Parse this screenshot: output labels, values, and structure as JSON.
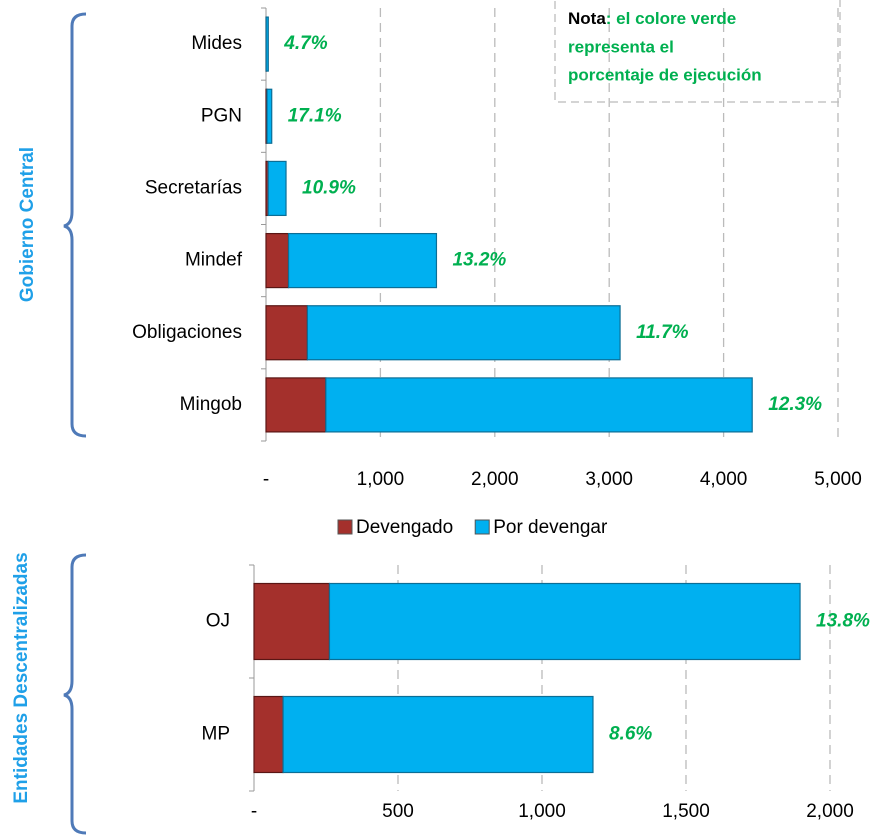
{
  "chart_data": [
    {
      "type": "bar",
      "orientation": "horizontal",
      "stacked": true,
      "group_label": "Gobierno Central",
      "categories": [
        "Mides",
        "PGN",
        "Secretarías",
        "Mindef",
        "Obligaciones",
        "Mingob"
      ],
      "series": [
        {
          "name": "Devengado",
          "color": "#a4302c",
          "values": [
            1,
            9,
            19,
            197,
            362,
            523
          ]
        },
        {
          "name": "Por devengar",
          "color": "#00b0f0",
          "values": [
            19,
            41,
            156,
            1293,
            2733,
            3727
          ]
        }
      ],
      "annotations": [
        "4.7%",
        "17.1%",
        "10.9%",
        "13.2%",
        "11.7%",
        "12.3%"
      ],
      "xlim": [
        0,
        5000
      ],
      "xticks": [
        {
          "value": 0,
          "label": "-"
        },
        {
          "value": 1000,
          "label": "1,000"
        },
        {
          "value": 2000,
          "label": "2,000"
        },
        {
          "value": 3000,
          "label": "3,000"
        },
        {
          "value": 4000,
          "label": "4,000"
        },
        {
          "value": 5000,
          "label": "5,000"
        }
      ],
      "grid": true,
      "note": {
        "bold": "Nota",
        "text": [
          ": el colore verde",
          "representa el",
          "porcentaje de ejecución"
        ]
      }
    },
    {
      "type": "bar",
      "orientation": "horizontal",
      "stacked": true,
      "group_label": "Entidades Descentralizadas",
      "categories": [
        "OJ",
        "MP"
      ],
      "series": [
        {
          "color": "#a4302c",
          "values": [
            262,
            101
          ]
        },
        {
          "color": "#00b0f0",
          "values": [
            1634,
            1076
          ]
        }
      ],
      "annotations": [
        "13.8%",
        "8.6%"
      ],
      "xlim": [
        0,
        2000
      ],
      "xticks": [
        {
          "value": 0,
          "label": "-"
        },
        500,
        {
          "value": 1000,
          "label": "1,000"
        },
        {
          "value": 1500,
          "label": "1,500"
        },
        {
          "value": 2000,
          "label": "2,000"
        }
      ],
      "grid": true
    }
  ]
}
